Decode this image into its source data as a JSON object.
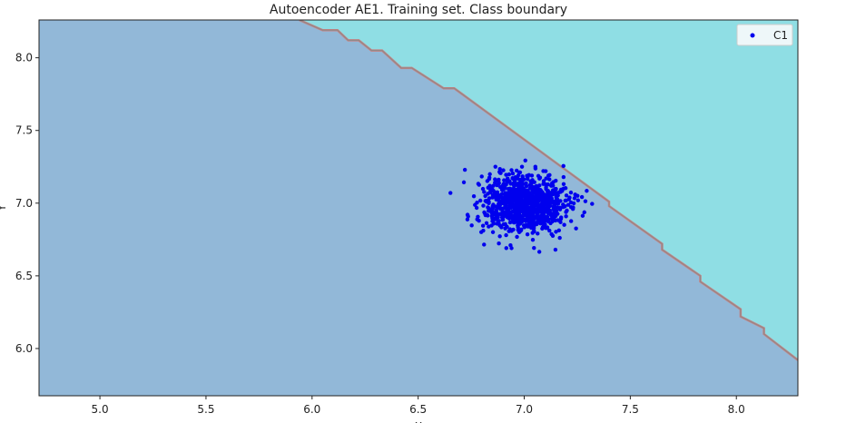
{
  "chart_data": {
    "type": "scatter",
    "title": "Autoencoder AE1. Training set. Class boundary",
    "xlabel": "X",
    "ylabel": "Y",
    "xlim": [
      4.713,
      8.29
    ],
    "ylim": [
      5.675,
      8.26
    ],
    "xticks": [
      "5.0",
      "5.5",
      "6.0",
      "6.5",
      "7.0",
      "7.5",
      "8.0"
    ],
    "yticks": [
      "6.0",
      "6.5",
      "7.0",
      "7.5",
      "8.0"
    ],
    "grid": false,
    "legend": {
      "position": "top-right",
      "entries": [
        "C1"
      ]
    },
    "regions": {
      "lower_left_color": "#92b8d8",
      "upper_right_color": "#8fdee4",
      "boundary_color": "#c98080"
    },
    "boundary": [
      [
        5.94,
        8.26
      ],
      [
        6.05,
        8.19
      ],
      [
        6.12,
        8.19
      ],
      [
        6.17,
        8.12
      ],
      [
        6.22,
        8.12
      ],
      [
        6.28,
        8.05
      ],
      [
        6.33,
        8.05
      ],
      [
        6.42,
        7.93
      ],
      [
        6.47,
        7.93
      ],
      [
        6.62,
        7.79
      ],
      [
        6.67,
        7.79
      ],
      [
        7.4,
        7.01
      ],
      [
        7.4,
        6.98
      ],
      [
        7.65,
        6.72
      ],
      [
        7.65,
        6.68
      ],
      [
        7.83,
        6.5
      ],
      [
        7.83,
        6.46
      ],
      [
        8.02,
        6.27
      ],
      [
        8.02,
        6.22
      ],
      [
        8.13,
        6.14
      ],
      [
        8.13,
        6.1
      ],
      [
        8.29,
        5.92
      ]
    ],
    "series": [
      {
        "name": "C1",
        "color": "#0000ee",
        "cluster": {
          "center": [
            7.0,
            7.0
          ],
          "std": [
            0.1,
            0.1
          ],
          "count": 1000
        }
      }
    ]
  }
}
